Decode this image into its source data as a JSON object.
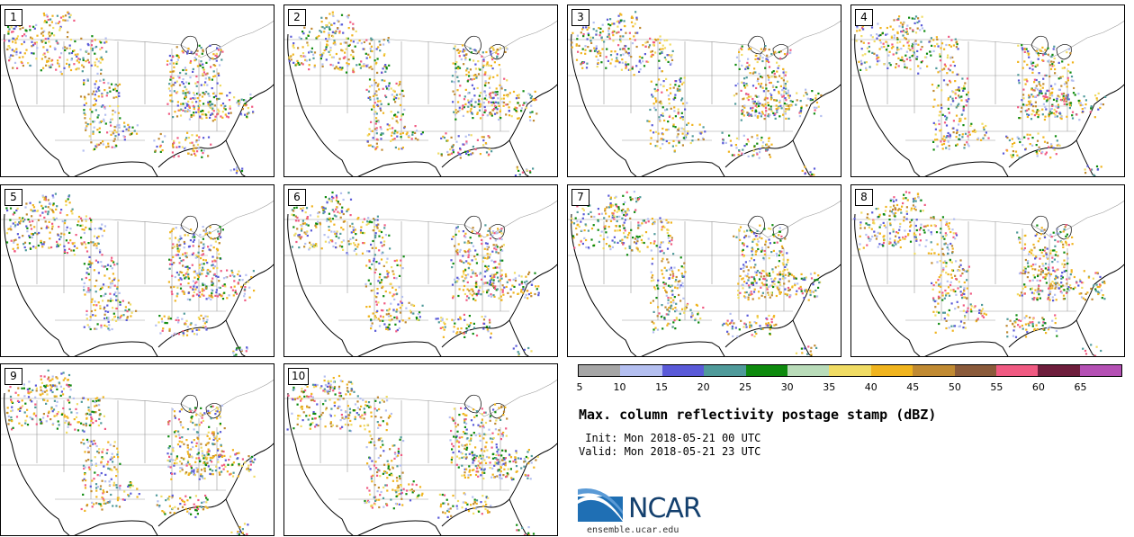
{
  "panels": [
    {
      "label": "1"
    },
    {
      "label": "2"
    },
    {
      "label": "3"
    },
    {
      "label": "4"
    },
    {
      "label": "5"
    },
    {
      "label": "6"
    },
    {
      "label": "7"
    },
    {
      "label": "8"
    },
    {
      "label": "9"
    },
    {
      "label": "10"
    }
  ],
  "colorbar": {
    "ticks": [
      "5",
      "10",
      "15",
      "20",
      "25",
      "30",
      "35",
      "40",
      "45",
      "50",
      "55",
      "60",
      "65"
    ],
    "colors": [
      "#a6a6a6",
      "#b4bff0",
      "#5a5ad8",
      "#4f9a9a",
      "#0e8a0e",
      "#b9dcb9",
      "#f0dc64",
      "#f0b41e",
      "#c08a32",
      "#8a5a3a",
      "#f05a82",
      "#6e1e3c",
      "#b450b4"
    ]
  },
  "title": "Max. column reflectivity postage stamp (dBZ)",
  "init_text": " Init: Mon 2018-05-21 00 UTC",
  "valid_text": "Valid: Mon 2018-05-21 23 UTC",
  "logo": {
    "text": "NCAR",
    "url_text": "ensemble.ucar.edu",
    "color": "#1f6fb4"
  }
}
